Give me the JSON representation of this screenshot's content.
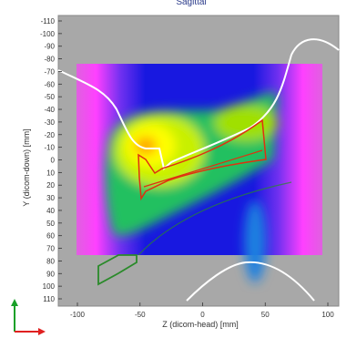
{
  "view": {
    "title": "Sagittal",
    "xlabel": "Z (dicom-head) [mm]",
    "ylabel": "Y (dicom-down) [mm]"
  },
  "axes": {
    "x_ticks": [
      "-100",
      "-50",
      "0",
      "50",
      "100"
    ],
    "y_ticks": [
      "-110",
      "-100",
      "-90",
      "-80",
      "-70",
      "-60",
      "-50",
      "-40",
      "-30",
      "-20",
      "-10",
      "0",
      "10",
      "20",
      "30",
      "40",
      "50",
      "60",
      "70",
      "80",
      "90",
      "100",
      "110"
    ]
  },
  "colors": {
    "background": "#a8a8a8",
    "dose_low": "#ff40ff",
    "dose_mid_low": "#2020e0",
    "dose_mid": "#20c070",
    "dose_high": "#ffff00",
    "contour_body": "#ffffff",
    "contour_target": "#e03010",
    "contour_organ": "#2a8a2a",
    "orientation_up": "#18a028",
    "orientation_right": "#e02020"
  }
}
